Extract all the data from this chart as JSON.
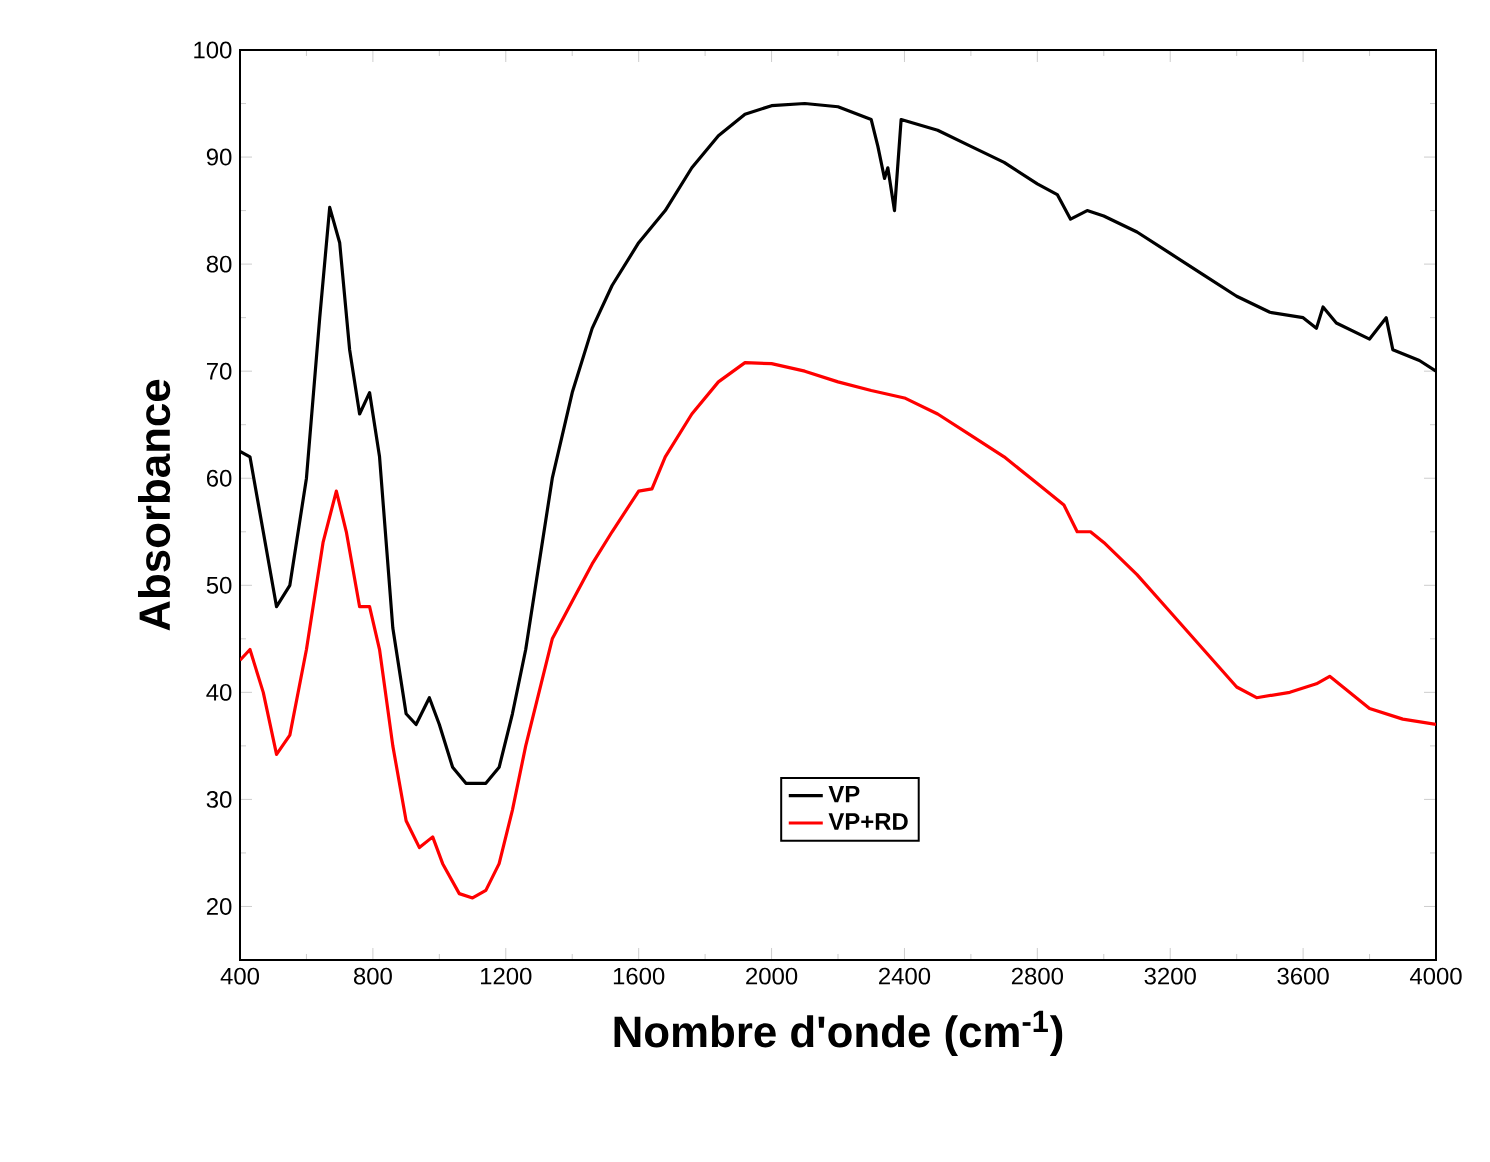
{
  "chart_data": {
    "type": "line",
    "xlabel": "Nombre d'onde (cm$^{-1}$)",
    "ylabel": "Absorbance",
    "xlim": [
      400,
      4000
    ],
    "ylim": [
      15,
      100
    ],
    "xticks": [
      400,
      800,
      1200,
      1600,
      2000,
      2400,
      2800,
      3200,
      3600,
      4000
    ],
    "yticks": [
      20,
      30,
      40,
      50,
      60,
      70,
      80,
      90,
      100
    ],
    "legend": "bottom",
    "line_style": "solid",
    "grid": false,
    "series": [
      {
        "name": "VP",
        "color": "#000000",
        "x": [
          400,
          430,
          470,
          510,
          550,
          600,
          640,
          670,
          700,
          730,
          760,
          790,
          820,
          860,
          900,
          930,
          970,
          1000,
          1040,
          1080,
          1140,
          1180,
          1220,
          1260,
          1300,
          1340,
          1400,
          1460,
          1520,
          1600,
          1680,
          1760,
          1840,
          1920,
          2000,
          2100,
          2200,
          2300,
          2320,
          2340,
          2350,
          2370,
          2390,
          2500,
          2600,
          2700,
          2800,
          2860,
          2900,
          2950,
          3000,
          3100,
          3200,
          3300,
          3400,
          3500,
          3600,
          3640,
          3660,
          3700,
          3800,
          3850,
          3870,
          3950,
          4000
        ],
        "values": [
          62.5,
          62,
          55,
          48,
          50,
          60,
          75,
          85.3,
          82,
          72,
          66,
          68,
          62,
          46,
          38,
          37,
          39.5,
          37,
          33,
          31.5,
          31.5,
          33,
          38,
          44,
          52,
          60,
          68,
          74,
          78,
          82,
          85,
          89,
          92,
          94,
          94.8,
          95,
          94.7,
          93.5,
          91,
          88,
          89,
          85,
          93.5,
          92.5,
          91,
          89.5,
          87.5,
          86.5,
          84.2,
          85,
          84.5,
          83,
          81,
          79,
          77,
          75.5,
          75,
          74,
          76,
          74.5,
          73,
          75,
          72,
          71,
          70
        ]
      },
      {
        "name": "VP+RD",
        "color": "#ff0000",
        "x": [
          400,
          430,
          470,
          510,
          550,
          600,
          650,
          690,
          720,
          760,
          790,
          820,
          860,
          900,
          940,
          980,
          1010,
          1060,
          1100,
          1140,
          1180,
          1220,
          1260,
          1300,
          1340,
          1400,
          1460,
          1520,
          1600,
          1640,
          1680,
          1760,
          1840,
          1920,
          2000,
          2100,
          2200,
          2300,
          2400,
          2500,
          2600,
          2700,
          2800,
          2880,
          2920,
          2960,
          3000,
          3100,
          3200,
          3300,
          3400,
          3460,
          3560,
          3640,
          3680,
          3720,
          3800,
          3900,
          4000
        ],
        "values": [
          43,
          44,
          40,
          34.2,
          36,
          44,
          54,
          58.8,
          55,
          48,
          48,
          44,
          35,
          28,
          25.5,
          26.5,
          24,
          21.2,
          20.8,
          21.5,
          24,
          29,
          35,
          40,
          45,
          48.5,
          52,
          55,
          58.8,
          59,
          62,
          66,
          69,
          70.8,
          70.7,
          70,
          69,
          68.2,
          67.5,
          66,
          64,
          62,
          59.5,
          57.5,
          55,
          55,
          54,
          51,
          47.5,
          44,
          40.5,
          39.5,
          40,
          40.8,
          41.5,
          40.5,
          38.5,
          37.5,
          37
        ]
      }
    ]
  }
}
